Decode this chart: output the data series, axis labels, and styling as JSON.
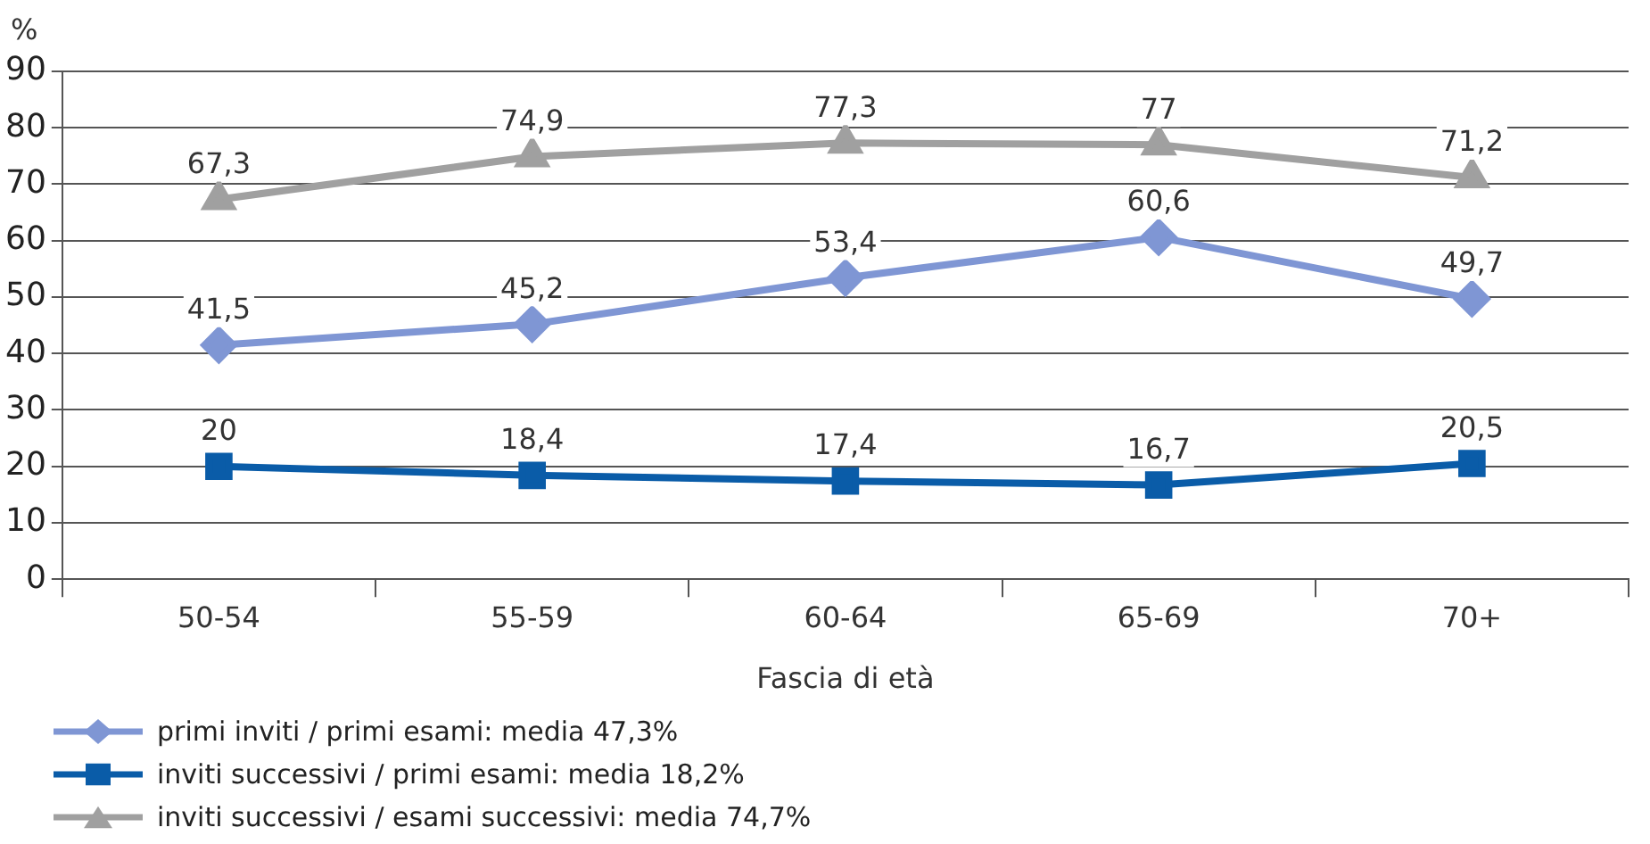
{
  "chart_data": {
    "type": "line",
    "xlabel": "Fascia di età",
    "ylabel": "%",
    "categories": [
      "50-54",
      "55-59",
      "60-64",
      "65-69",
      "70+"
    ],
    "series": [
      {
        "name": "primi inviti / primi esami: media 47,3%",
        "color": "#7f96d4",
        "marker": "diamond",
        "values": [
          41.5,
          45.2,
          53.4,
          60.6,
          49.7
        ],
        "value_labels": [
          "41,5",
          "45,2",
          "53,4",
          "60,6",
          "49,7"
        ]
      },
      {
        "name": "inviti successivi / primi esami: media 18,2%",
        "color": "#0a5ca8",
        "marker": "square",
        "values": [
          20,
          18.4,
          17.4,
          16.7,
          20.5
        ],
        "value_labels": [
          "20",
          "18,4",
          "17,4",
          "16,7",
          "20,5"
        ]
      },
      {
        "name": "inviti successivi / esami successivi: media 74,7%",
        "color": "#a0a0a0",
        "marker": "triangle",
        "values": [
          67.3,
          74.9,
          77.3,
          77,
          71.2
        ],
        "value_labels": [
          "67,3",
          "74,9",
          "77,3",
          "77",
          "71,2"
        ]
      }
    ],
    "ylim": [
      0,
      90
    ],
    "yticks": [
      0,
      10,
      20,
      30,
      40,
      50,
      60,
      70,
      80,
      90
    ],
    "grid": "y",
    "legend": "bottom left",
    "line_style": "solid"
  }
}
